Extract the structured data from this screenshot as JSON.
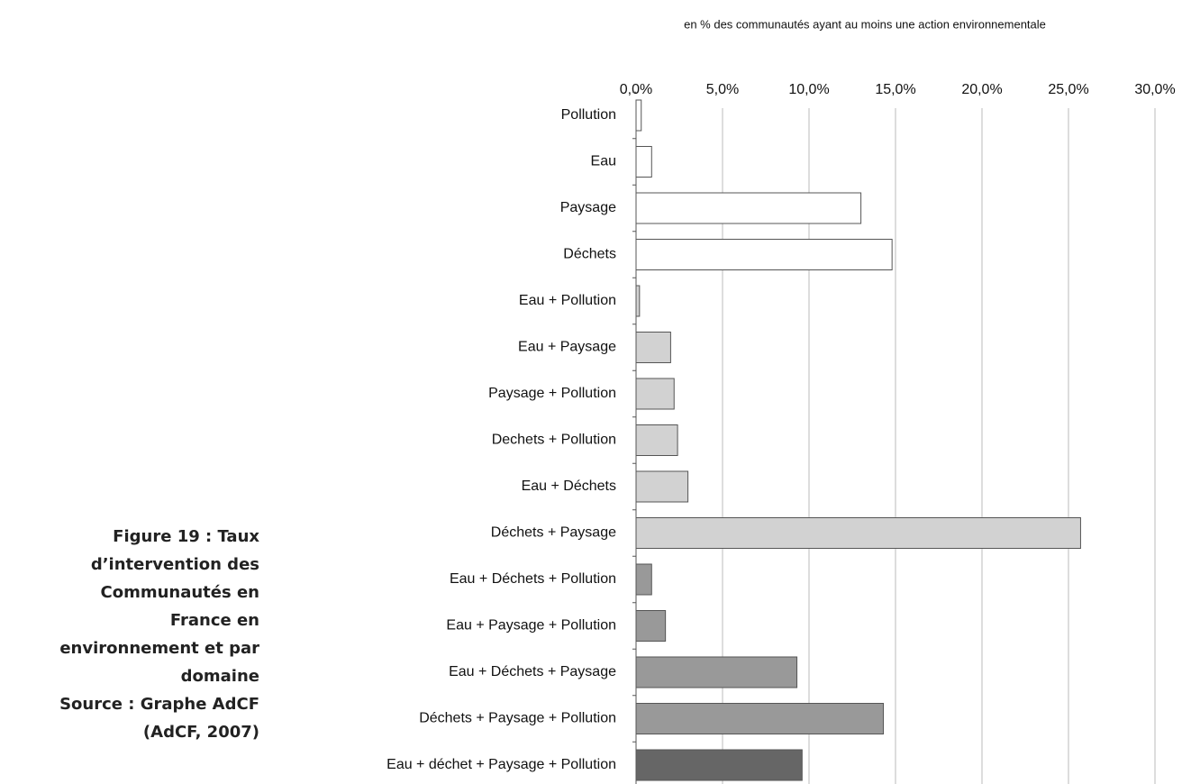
{
  "chart_data": {
    "type": "bar",
    "orientation": "horizontal",
    "xlabel": "en % des communautés ayant au moins une action environnementale",
    "categories": [
      "Pollution",
      "Eau",
      "Paysage",
      "Déchets",
      "Eau + Pollution",
      "Eau + Paysage",
      "Paysage + Pollution",
      "Dechets + Pollution",
      "Eau + Déchets",
      "Déchets  + Paysage",
      "Eau + Déchets + Pollution",
      "Eau + Paysage + Pollution",
      "Eau + Déchets + Paysage",
      "Déchets + Paysage  + Pollution",
      "Eau + déchet + Paysage + Pollution"
    ],
    "values": [
      0.3,
      0.9,
      13.0,
      14.8,
      0.2,
      2.0,
      2.2,
      2.4,
      3.0,
      25.7,
      0.9,
      1.7,
      9.3,
      14.3,
      9.6
    ],
    "colors": [
      "#ffffff",
      "#ffffff",
      "#ffffff",
      "#ffffff",
      "#d2d2d2",
      "#d2d2d2",
      "#d2d2d2",
      "#d2d2d2",
      "#d2d2d2",
      "#d2d2d2",
      "#999999",
      "#999999",
      "#999999",
      "#999999",
      "#666666"
    ],
    "xlim": [
      0,
      30
    ],
    "xticks": [
      {
        "value": 0,
        "label": "0,0%"
      },
      {
        "value": 5,
        "label": "5,0%"
      },
      {
        "value": 10,
        "label": "10,0%"
      },
      {
        "value": 15,
        "label": "15,0%"
      },
      {
        "value": 20,
        "label": "20,0%"
      },
      {
        "value": 25,
        "label": "25,0%"
      },
      {
        "value": 30,
        "label": "30,0%"
      }
    ],
    "grid": true
  },
  "caption": [
    "Figure 19 : Taux",
    "d’intervention des",
    "Communautés en",
    "France en",
    "environnement et par",
    "domaine"
  ],
  "source": [
    "Source : Graphe AdCF",
    "(AdCF, 2007)"
  ]
}
